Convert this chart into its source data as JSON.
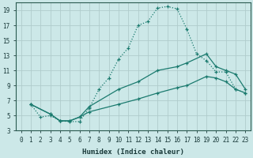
{
  "xlabel": "Humidex (Indice chaleur)",
  "bg_color": "#cce8e8",
  "grid_color": "#b0cccc",
  "line_color": "#1a7a6e",
  "xlim": [
    -0.5,
    23.5
  ],
  "ylim": [
    3,
    20
  ],
  "xticks": [
    0,
    1,
    2,
    3,
    4,
    5,
    6,
    7,
    8,
    9,
    10,
    11,
    12,
    13,
    14,
    15,
    16,
    17,
    18,
    19,
    20,
    21,
    22,
    23
  ],
  "yticks": [
    3,
    5,
    7,
    9,
    11,
    13,
    15,
    17,
    19
  ],
  "series1_x": [
    1,
    2,
    3,
    4,
    5,
    6,
    7,
    8,
    9,
    10,
    11,
    12,
    13,
    14,
    15,
    16,
    17,
    18,
    19,
    20,
    21,
    22,
    23
  ],
  "series1_y": [
    6.5,
    4.8,
    5.0,
    4.3,
    4.2,
    4.2,
    6.0,
    8.5,
    10.0,
    12.5,
    14.0,
    17.0,
    17.5,
    19.3,
    19.5,
    19.2,
    16.5,
    13.2,
    12.3,
    10.8,
    10.8,
    8.5,
    8.0
  ],
  "series2_x": [
    1,
    3,
    4,
    5,
    6,
    7,
    10,
    12,
    14,
    16,
    17,
    19,
    20,
    21,
    22,
    23
  ],
  "series2_y": [
    6.5,
    5.2,
    4.3,
    4.3,
    4.8,
    6.2,
    8.5,
    9.5,
    11.0,
    11.5,
    12.0,
    13.2,
    11.5,
    11.0,
    10.5,
    8.5
  ],
  "series3_x": [
    1,
    3,
    4,
    5,
    6,
    7,
    10,
    12,
    14,
    16,
    17,
    19,
    20,
    21,
    22,
    23
  ],
  "series3_y": [
    6.5,
    5.2,
    4.3,
    4.3,
    4.8,
    5.5,
    6.5,
    7.2,
    8.0,
    8.7,
    9.0,
    10.2,
    10.0,
    9.5,
    8.5,
    8.0
  ]
}
